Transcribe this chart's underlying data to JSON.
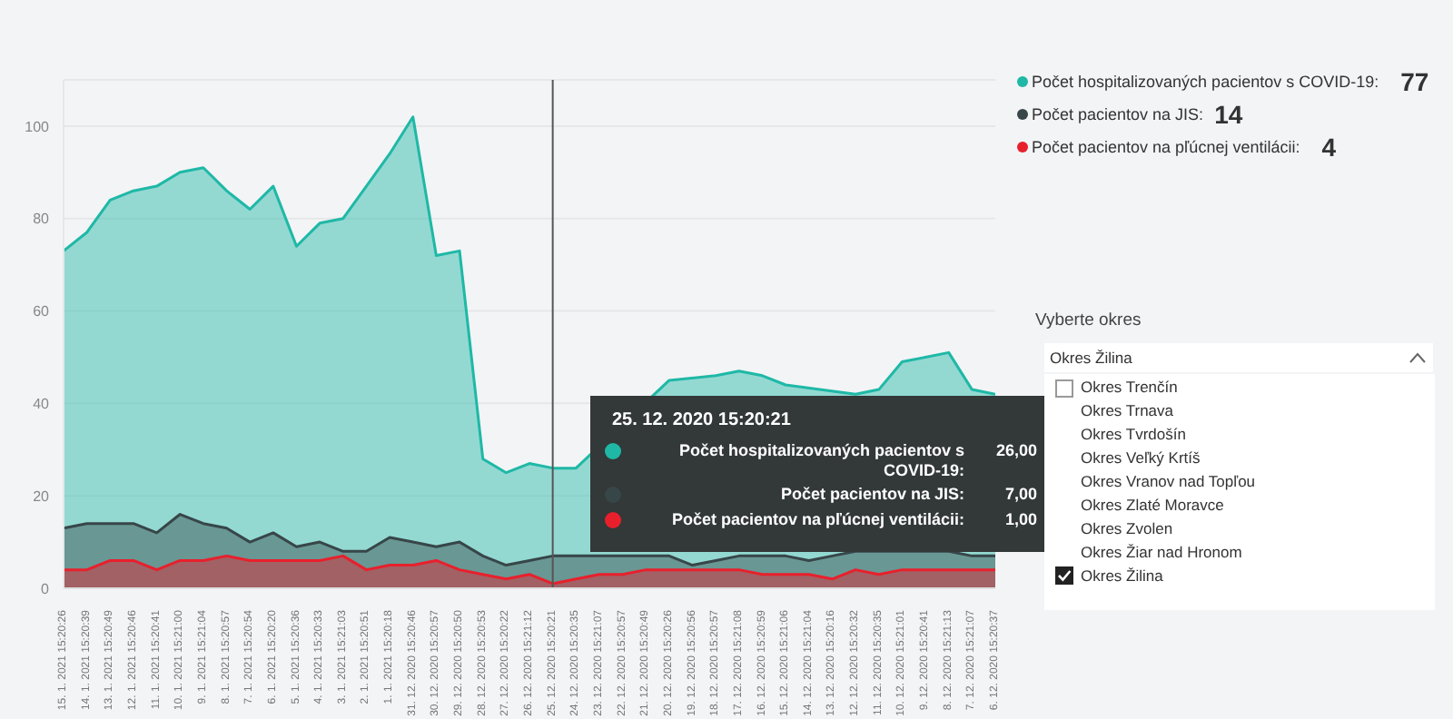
{
  "chart_data": {
    "type": "area",
    "categories": [
      "15. 1. 2021 15:20:26",
      "14. 1. 2021 15:20:39",
      "13. 1. 2021 15:20:49",
      "12. 1. 2021 15:20:46",
      "11. 1. 2021 15:20:41",
      "10. 1. 2021 15:21:00",
      "9. 1. 2021 15:21:04",
      "8. 1. 2021 15:20:57",
      "7. 1. 2021 15:20:54",
      "6. 1. 2021 15:20:20",
      "5. 1. 2021 15:20:36",
      "4. 1. 2021 15:20:33",
      "3. 1. 2021 15:21:03",
      "2. 1. 2021 15:20:51",
      "1. 1. 2021 15:20:18",
      "31. 12. 2020 15:20:46",
      "30. 12. 2020 15:20:57",
      "29. 12. 2020 15:20:50",
      "28. 12. 2020 15:20:53",
      "27. 12. 2020 15:20:22",
      "26. 12. 2020 15:21:12",
      "25. 12. 2020 15:20:21",
      "24. 12. 2020 15:20:35",
      "23. 12. 2020 15:21:07",
      "22. 12. 2020 15:20:57",
      "21. 12. 2020 15:20:49",
      "20. 12. 2020 15:20:26",
      "19. 12. 2020 15:20:56",
      "18. 12. 2020 15:20:57",
      "17. 12. 2020 15:21:08",
      "16. 12. 2020 15:20:59",
      "15. 12. 2020 15:21:06",
      "14. 12. 2020 15:21:04",
      "13. 12. 2020 15:20:16",
      "12. 12. 2020 15:20:32",
      "11. 12. 2020 15:20:35",
      "10. 12. 2020 15:21:01",
      "9. 12. 2020 15:20:41",
      "8. 12. 2020 15:21:13",
      "7. 12. 2020 15:21:07",
      "6. 12. 2020 15:20:37"
    ],
    "series": [
      {
        "name": "Počet hospitalizovaných pacientov s COVID-19:",
        "color": "#1fb8a6",
        "values": [
          73,
          77,
          84,
          86,
          87,
          90,
          91,
          86,
          82,
          87,
          74,
          79,
          80,
          87,
          94,
          102,
          72,
          73,
          28,
          25,
          27,
          26,
          26,
          null,
          null,
          null,
          45,
          null,
          46,
          47,
          46,
          44,
          null,
          null,
          42,
          43,
          49,
          50,
          51,
          43,
          42
        ]
      },
      {
        "name": "Počet pacientov na JIS:",
        "color": "#374649",
        "values": [
          13,
          14,
          14,
          14,
          12,
          16,
          14,
          13,
          10,
          12,
          9,
          10,
          8,
          8,
          11,
          10,
          9,
          10,
          7,
          5,
          6,
          7,
          7,
          7,
          7,
          7,
          7,
          5,
          6,
          7,
          7,
          7,
          6,
          7,
          8,
          8,
          8,
          8,
          8,
          7,
          7
        ]
      },
      {
        "name": "Počet pacientov na pľúcnej ventilácii:",
        "color": "#e8202c",
        "values": [
          4,
          4,
          6,
          6,
          4,
          6,
          6,
          7,
          6,
          6,
          6,
          6,
          7,
          4,
          5,
          5,
          6,
          4,
          3,
          2,
          3,
          1,
          2,
          3,
          3,
          4,
          4,
          4,
          4,
          4,
          3,
          3,
          3,
          2,
          4,
          3,
          4,
          4,
          4,
          4,
          4
        ]
      }
    ],
    "ylim": [
      0,
      110
    ],
    "yticks": [
      0,
      20,
      40,
      60,
      80,
      100
    ],
    "grid": "y",
    "legend": "top right",
    "marker": "none",
    "ref_lines": [
      {
        "axis": "x",
        "value": "25. 12. 2020 15:20:21",
        "color": "#555555"
      }
    ],
    "annotations": [
      "77",
      "14",
      "4",
      "Vyberte okres",
      "Okres Žilina",
      "Okres Trenčín",
      "Okres Trnava",
      "Okres Tvrdošín",
      "Okres Veľký Krtíš",
      "Okres Vranov nad Topľou",
      "Okres Zlaté Moravce",
      "Okres Zvolen",
      "Okres Žiar nad Hronom",
      "Okres Žilina",
      "25. 12. 2020 15:20:21",
      "26,00",
      "7,00",
      "1,00"
    ]
  }
}
